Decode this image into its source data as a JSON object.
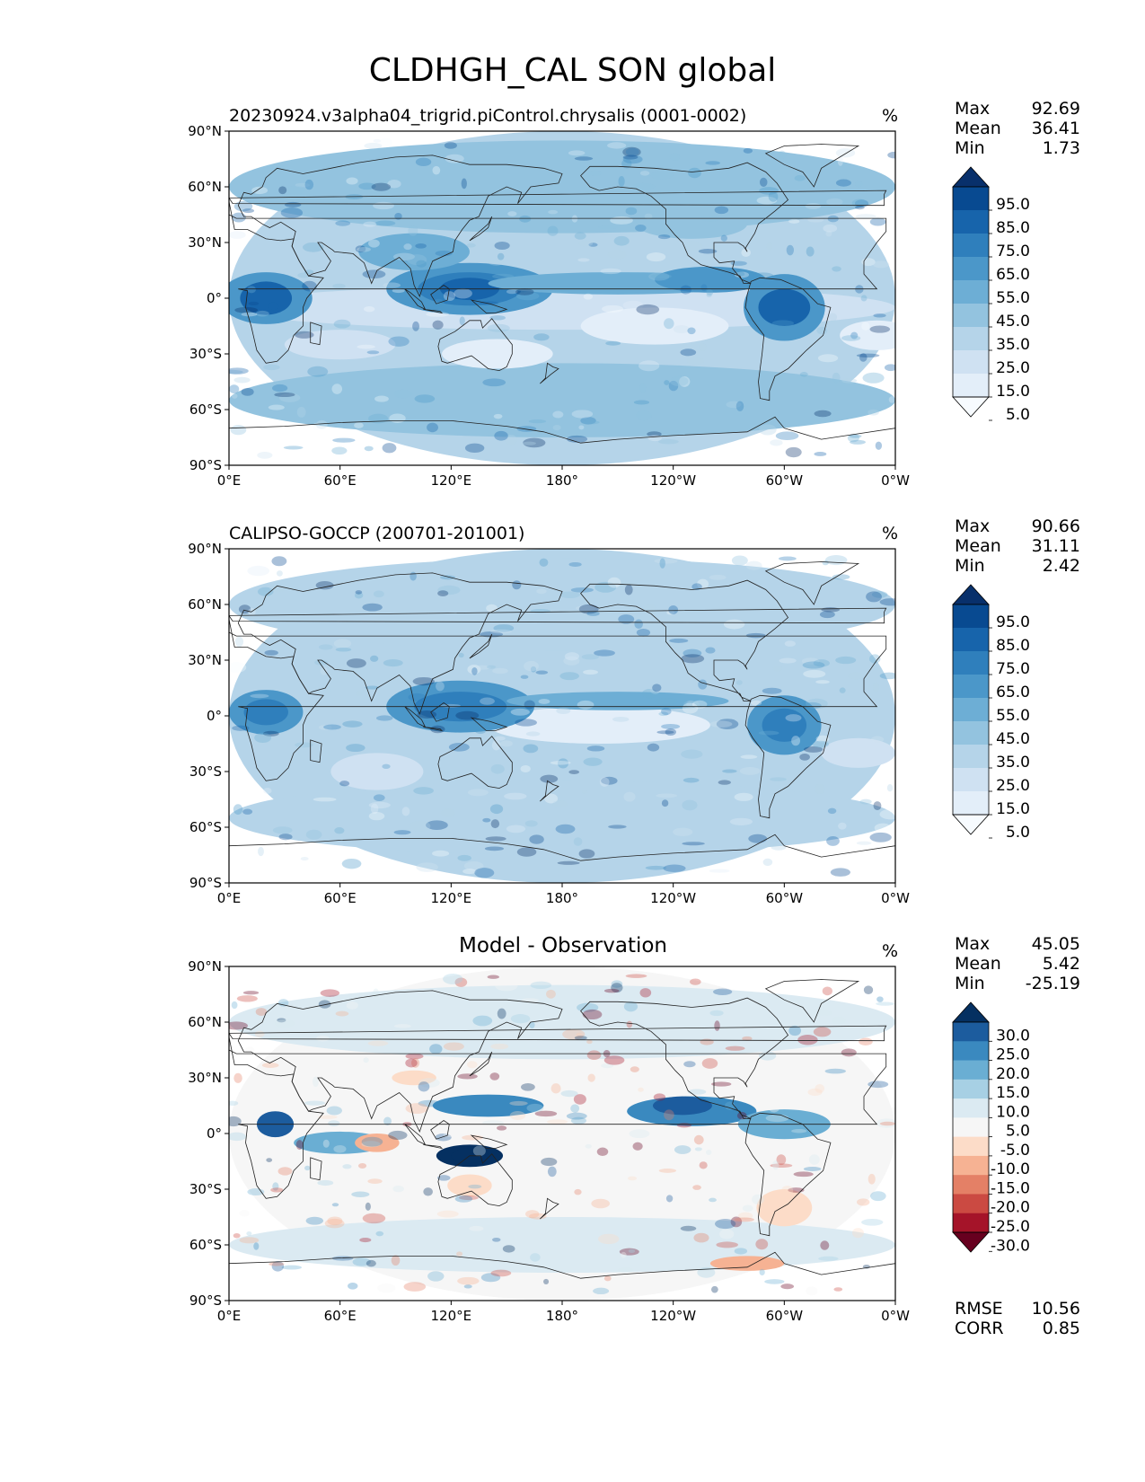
{
  "figure": {
    "title": "CLDHGH_CAL SON global"
  },
  "axes": {
    "lat_ticks": [
      "90°N",
      "60°N",
      "30°N",
      "0°",
      "30°S",
      "60°S",
      "90°S"
    ],
    "lon_ticks": [
      "0°E",
      "60°E",
      "120°E",
      "180°",
      "120°W",
      "60°W",
      "0°W"
    ]
  },
  "panels": [
    {
      "title": "20230924.v3alpha04_trigrid.piControl.chrysalis (0001-0002)",
      "units": "%",
      "stats": {
        "max_label": "Max",
        "max": "92.69",
        "mean_label": "Mean",
        "mean": "36.41",
        "min_label": "Min",
        "min": "1.73"
      },
      "colorbar": {
        "colors": [
          "#f7fbff",
          "#e3eef9",
          "#cfe1f2",
          "#b5d4e9",
          "#93c3df",
          "#6daed5",
          "#4b97c9",
          "#2f7fbc",
          "#1764ab",
          "#084a91",
          "#08306b"
        ],
        "labels": [
          "95.0",
          "85.0",
          "75.0",
          "65.0",
          "55.0",
          "45.0",
          "35.0",
          "25.0",
          "15.0",
          "5.0"
        ]
      }
    },
    {
      "title": "CALIPSO-GOCCP (200701-201001)",
      "units": "%",
      "stats": {
        "max_label": "Max",
        "max": "90.66",
        "mean_label": "Mean",
        "mean": "31.11",
        "min_label": "Min",
        "min": "2.42"
      },
      "colorbar": {
        "colors": [
          "#f7fbff",
          "#e3eef9",
          "#cfe1f2",
          "#b5d4e9",
          "#93c3df",
          "#6daed5",
          "#4b97c9",
          "#2f7fbc",
          "#1764ab",
          "#084a91",
          "#08306b"
        ],
        "labels": [
          "95.0",
          "85.0",
          "75.0",
          "65.0",
          "55.0",
          "45.0",
          "35.0",
          "25.0",
          "15.0",
          "5.0"
        ]
      }
    },
    {
      "title": "Model - Observation",
      "units": "%",
      "stats": {
        "max_label": "Max",
        "max": "45.05",
        "mean_label": "Mean",
        "mean": "5.42",
        "min_label": "Min",
        "min": "-25.19"
      },
      "metrics": {
        "rmse_label": "RMSE",
        "rmse": "10.56",
        "corr_label": "CORR",
        "corr": "0.85"
      },
      "colorbar": {
        "colors": [
          "#67001f",
          "#a51429",
          "#cb4a42",
          "#e48066",
          "#f6b293",
          "#fcdcc8",
          "#f6f6f6",
          "#dbeaf2",
          "#a7d0e4",
          "#6aaed3",
          "#3a89bf",
          "#1c5c9e",
          "#053061"
        ],
        "labels": [
          "30.0",
          "25.0",
          "20.0",
          "15.0",
          "10.0",
          "5.0",
          "-5.0",
          "-10.0",
          "-15.0",
          "-20.0",
          "-25.0",
          "-30.0"
        ]
      }
    }
  ]
}
